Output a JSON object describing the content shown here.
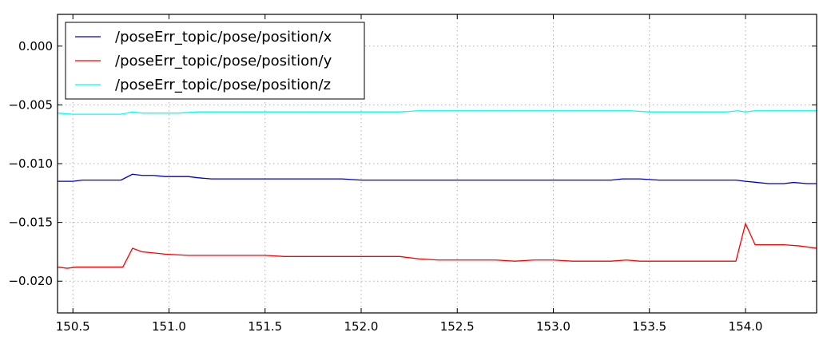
{
  "chart_data": {
    "type": "line",
    "title": "",
    "xlabel": "",
    "ylabel": "",
    "xlim": [
      150.42,
      154.37
    ],
    "ylim": [
      -0.0227,
      0.0027
    ],
    "grid": true,
    "legend_position": "top-left",
    "x_ticks": [
      150.5,
      151.0,
      151.5,
      152.0,
      152.5,
      153.0,
      153.5,
      154.0
    ],
    "x_tick_labels": [
      "150.5",
      "151.0",
      "151.5",
      "152.0",
      "152.5",
      "153.0",
      "153.5",
      "154.0"
    ],
    "y_ticks": [
      0.0,
      -0.005,
      -0.01,
      -0.015,
      -0.02
    ],
    "y_tick_labels": [
      "0.000",
      "−0.005",
      "−0.010",
      "−0.015",
      "−0.020"
    ],
    "series": [
      {
        "name": "/poseErr_topic/pose/position/x",
        "color": "#0000cc",
        "points": [
          [
            150.42,
            -0.0115
          ],
          [
            150.5,
            -0.0115
          ],
          [
            150.55,
            -0.0114
          ],
          [
            150.65,
            -0.0114
          ],
          [
            150.75,
            -0.0114
          ],
          [
            150.81,
            -0.0109
          ],
          [
            150.86,
            -0.011
          ],
          [
            150.92,
            -0.011
          ],
          [
            150.98,
            -0.0111
          ],
          [
            151.1,
            -0.0111
          ],
          [
            151.15,
            -0.0112
          ],
          [
            151.22,
            -0.0113
          ],
          [
            151.3,
            -0.0113
          ],
          [
            151.4,
            -0.0113
          ],
          [
            151.5,
            -0.0113
          ],
          [
            151.6,
            -0.0113
          ],
          [
            151.7,
            -0.0113
          ],
          [
            151.8,
            -0.0113
          ],
          [
            151.9,
            -0.0113
          ],
          [
            152.0,
            -0.0114
          ],
          [
            152.1,
            -0.0114
          ],
          [
            152.2,
            -0.0114
          ],
          [
            152.3,
            -0.0114
          ],
          [
            152.4,
            -0.0114
          ],
          [
            152.5,
            -0.0114
          ],
          [
            152.6,
            -0.0114
          ],
          [
            152.7,
            -0.0114
          ],
          [
            152.8,
            -0.0114
          ],
          [
            152.9,
            -0.0114
          ],
          [
            153.0,
            -0.0114
          ],
          [
            153.1,
            -0.0114
          ],
          [
            153.2,
            -0.0114
          ],
          [
            153.3,
            -0.0114
          ],
          [
            153.36,
            -0.0113
          ],
          [
            153.45,
            -0.0113
          ],
          [
            153.55,
            -0.0114
          ],
          [
            153.65,
            -0.0114
          ],
          [
            153.75,
            -0.0114
          ],
          [
            153.85,
            -0.0114
          ],
          [
            153.95,
            -0.0114
          ],
          [
            154.0,
            -0.0115
          ],
          [
            154.06,
            -0.0116
          ],
          [
            154.12,
            -0.0117
          ],
          [
            154.2,
            -0.0117
          ],
          [
            154.25,
            -0.0116
          ],
          [
            154.32,
            -0.0117
          ],
          [
            154.37,
            -0.0117
          ]
        ]
      },
      {
        "name": "/poseErr_topic/pose/position/y",
        "color": "#ff0000",
        "points": [
          [
            150.42,
            -0.0188
          ],
          [
            150.47,
            -0.0189
          ],
          [
            150.52,
            -0.0188
          ],
          [
            150.6,
            -0.0188
          ],
          [
            150.68,
            -0.0188
          ],
          [
            150.76,
            -0.0188
          ],
          [
            150.81,
            -0.0172
          ],
          [
            150.86,
            -0.0175
          ],
          [
            150.92,
            -0.0176
          ],
          [
            150.98,
            -0.0177
          ],
          [
            151.1,
            -0.0178
          ],
          [
            151.2,
            -0.0178
          ],
          [
            151.3,
            -0.0178
          ],
          [
            151.4,
            -0.0178
          ],
          [
            151.5,
            -0.0178
          ],
          [
            151.6,
            -0.0179
          ],
          [
            151.7,
            -0.0179
          ],
          [
            151.8,
            -0.0179
          ],
          [
            151.9,
            -0.0179
          ],
          [
            152.0,
            -0.0179
          ],
          [
            152.1,
            -0.0179
          ],
          [
            152.2,
            -0.0179
          ],
          [
            152.25,
            -0.018
          ],
          [
            152.3,
            -0.0181
          ],
          [
            152.4,
            -0.0182
          ],
          [
            152.5,
            -0.0182
          ],
          [
            152.6,
            -0.0182
          ],
          [
            152.7,
            -0.0182
          ],
          [
            152.8,
            -0.0183
          ],
          [
            152.9,
            -0.0182
          ],
          [
            153.0,
            -0.0182
          ],
          [
            153.1,
            -0.0183
          ],
          [
            153.2,
            -0.0183
          ],
          [
            153.3,
            -0.0183
          ],
          [
            153.38,
            -0.0182
          ],
          [
            153.45,
            -0.0183
          ],
          [
            153.55,
            -0.0183
          ],
          [
            153.65,
            -0.0183
          ],
          [
            153.75,
            -0.0183
          ],
          [
            153.85,
            -0.0183
          ],
          [
            153.95,
            -0.0183
          ],
          [
            154.0,
            -0.0151
          ],
          [
            154.05,
            -0.0169
          ],
          [
            154.12,
            -0.0169
          ],
          [
            154.2,
            -0.0169
          ],
          [
            154.28,
            -0.017
          ],
          [
            154.37,
            -0.0172
          ]
        ]
      },
      {
        "name": "/poseErr_topic/pose/position/z",
        "color": "#00ffff",
        "points": [
          [
            150.42,
            -0.0057
          ],
          [
            150.5,
            -0.0058
          ],
          [
            150.6,
            -0.0058
          ],
          [
            150.7,
            -0.0058
          ],
          [
            150.75,
            -0.0058
          ],
          [
            150.81,
            -0.0056
          ],
          [
            150.86,
            -0.0057
          ],
          [
            150.95,
            -0.0057
          ],
          [
            151.05,
            -0.0057
          ],
          [
            151.15,
            -0.0056
          ],
          [
            151.25,
            -0.0056
          ],
          [
            151.35,
            -0.0056
          ],
          [
            151.5,
            -0.0056
          ],
          [
            151.6,
            -0.0056
          ],
          [
            151.7,
            -0.0056
          ],
          [
            151.8,
            -0.0056
          ],
          [
            151.9,
            -0.0056
          ],
          [
            152.0,
            -0.0056
          ],
          [
            152.1,
            -0.0056
          ],
          [
            152.2,
            -0.0056
          ],
          [
            152.3,
            -0.0055
          ],
          [
            152.4,
            -0.0055
          ],
          [
            152.5,
            -0.0055
          ],
          [
            152.6,
            -0.0055
          ],
          [
            152.7,
            -0.0055
          ],
          [
            152.8,
            -0.0055
          ],
          [
            152.9,
            -0.0055
          ],
          [
            153.0,
            -0.0055
          ],
          [
            153.1,
            -0.0055
          ],
          [
            153.2,
            -0.0055
          ],
          [
            153.3,
            -0.0055
          ],
          [
            153.4,
            -0.0055
          ],
          [
            153.5,
            -0.0056
          ],
          [
            153.6,
            -0.0056
          ],
          [
            153.7,
            -0.0056
          ],
          [
            153.8,
            -0.0056
          ],
          [
            153.9,
            -0.0056
          ],
          [
            153.96,
            -0.0055
          ],
          [
            154.0,
            -0.0056
          ],
          [
            154.05,
            -0.0055
          ],
          [
            154.15,
            -0.0055
          ],
          [
            154.25,
            -0.0055
          ],
          [
            154.3,
            -0.0055
          ],
          [
            154.37,
            -0.0055
          ]
        ]
      }
    ]
  }
}
